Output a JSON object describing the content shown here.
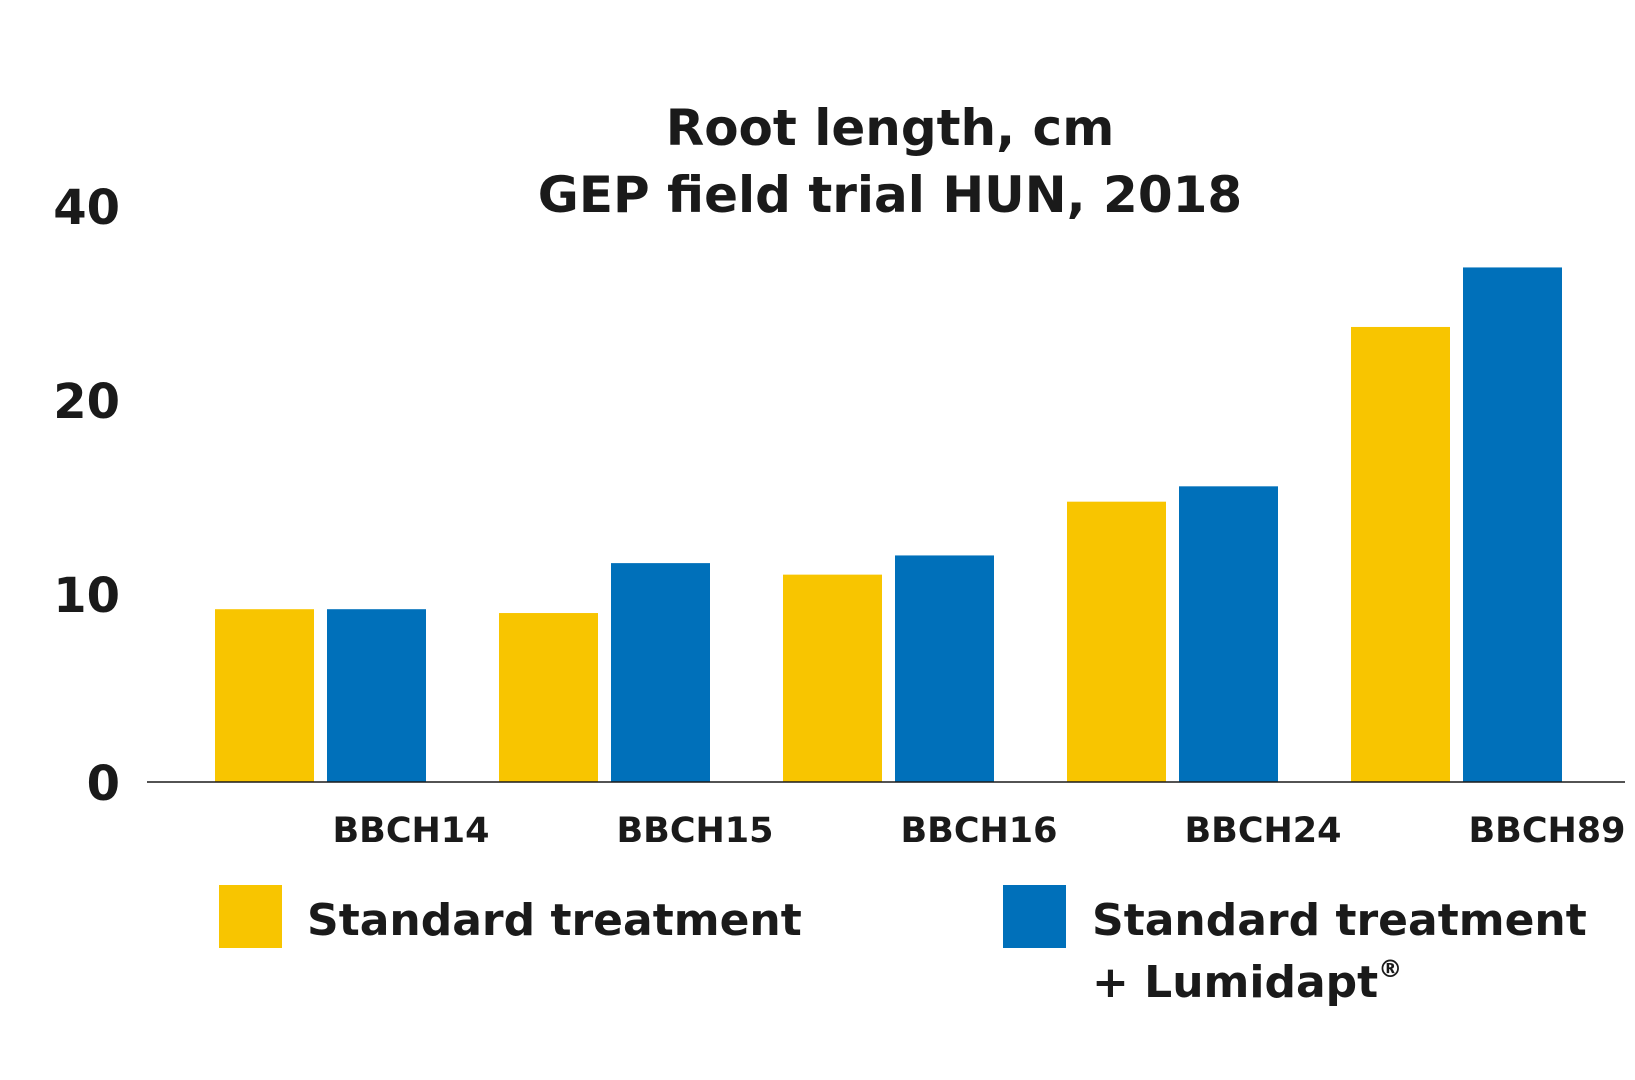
{
  "chart_data": {
    "type": "bar",
    "title": "Root length, cm",
    "subtitle": "GEP field trial HUN, 2018",
    "categories": [
      "BBCH14",
      "BBCH15",
      "BBCH16",
      "BBCH24",
      "BBCH89"
    ],
    "series": [
      {
        "name": "Standard treatment",
        "color": "#F8C500",
        "values": [
          9.0,
          8.8,
          10.8,
          14.6,
          23.7
        ]
      },
      {
        "name": "Standard treatment + Lumidapt®",
        "name_line1": "Standard treatment",
        "name_line2": "+ Lumidapt",
        "name_sup": "®",
        "color": "#0070BA",
        "values": [
          9.0,
          11.4,
          11.8,
          15.4,
          26.8
        ]
      }
    ],
    "y_ticks": [
      "0",
      "10",
      "20",
      "40"
    ],
    "xlabel": "",
    "ylabel": "",
    "legend_position": "bottom",
    "grid": false
  }
}
